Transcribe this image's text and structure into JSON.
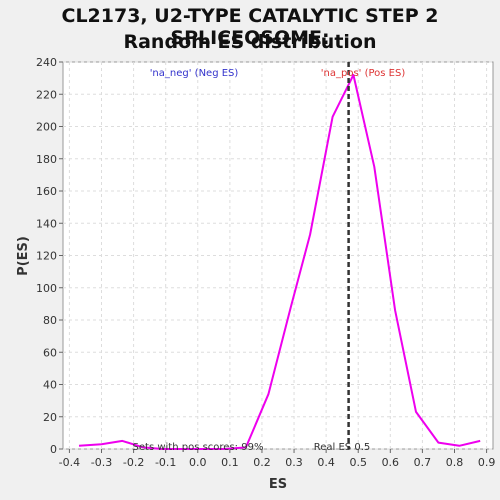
{
  "title_line1": "CL2173, U2-TYPE CATALYTIC STEP 2 SPLICEOSOME:",
  "title_line2": "Random ES distribution",
  "chart_data": {
    "type": "line",
    "title": "CL2173, U2-TYPE CATALYTIC STEP 2 SPLICEOSOME: Random ES distribution",
    "xlabel": "ES",
    "ylabel": "P(ES)",
    "xlim": [
      -0.42,
      0.92
    ],
    "ylim": [
      0,
      240
    ],
    "xticks": [
      "-0.4",
      "-0.3",
      "-0.2",
      "-0.1",
      "0.0",
      "0.1",
      "0.2",
      "0.3",
      "0.4",
      "0.5",
      "0.6",
      "0.7",
      "0.8",
      "0.9"
    ],
    "yticks": [
      "0",
      "20",
      "40",
      "60",
      "80",
      "100",
      "120",
      "140",
      "160",
      "180",
      "200",
      "220",
      "240"
    ],
    "grid": true,
    "series": [
      {
        "color": "#ee00ee",
        "x": [
          -0.37,
          -0.3,
          -0.235,
          -0.17,
          -0.11,
          -0.045,
          0.02,
          0.085,
          0.15,
          0.22,
          0.29,
          0.35,
          0.42,
          0.485,
          0.55,
          0.615,
          0.68,
          0.75,
          0.815,
          0.88
        ],
        "y": [
          2,
          3,
          5,
          1,
          0,
          0,
          0,
          0,
          1,
          34,
          88,
          133,
          206,
          232,
          175,
          86,
          23,
          4,
          2,
          5
        ]
      }
    ],
    "vline": {
      "x": 0.47,
      "style": "dashed",
      "color": "#333333"
    },
    "annotations": {
      "neg": "'na_neg' (Neg ES)",
      "pos": "'na_pos' (Pos ES)",
      "sets": "Sets with pos scores: 99%",
      "real": "Real ES 0.5"
    },
    "colors": {
      "neg": "#3333cc",
      "pos": "#dd3333",
      "line": "#ee00ee"
    }
  }
}
